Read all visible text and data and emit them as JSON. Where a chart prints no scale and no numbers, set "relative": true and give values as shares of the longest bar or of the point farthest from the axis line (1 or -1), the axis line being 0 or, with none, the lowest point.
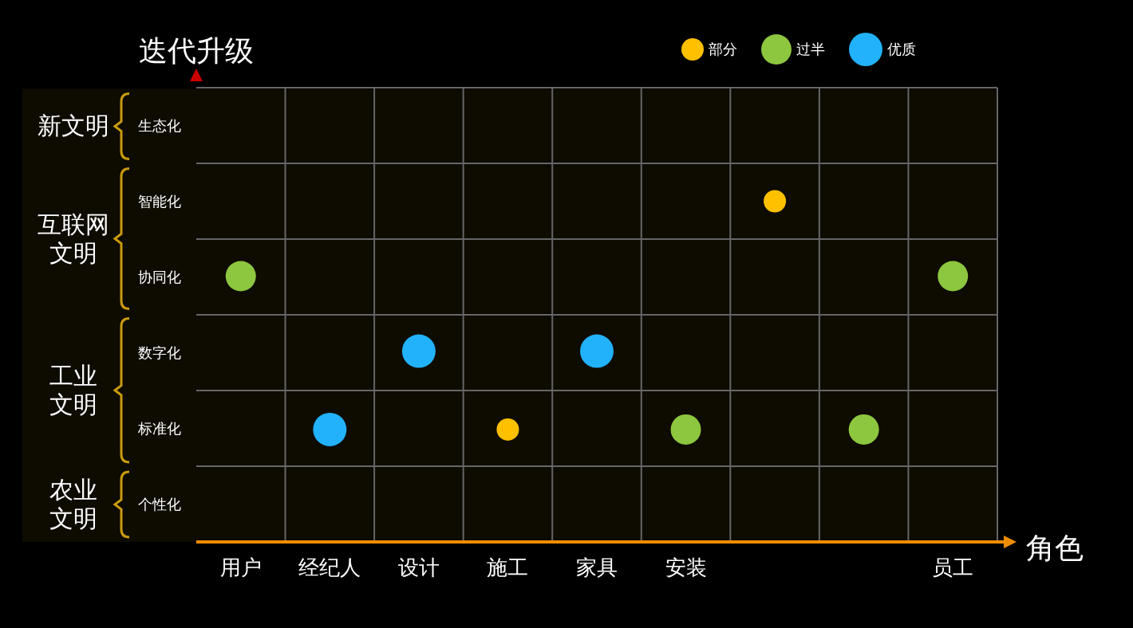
{
  "chart_data": {
    "type": "scatter",
    "xlabel": "角色",
    "ylabel": "迭代升级",
    "relative": true,
    "categories": [
      "用户",
      "经纪人",
      "设计",
      "施工",
      "家具",
      "安装",
      null,
      null,
      "员工"
    ],
    "y_categories": [
      "生态化",
      "智能化",
      "协同化",
      "数字化",
      "标准化",
      "个性化"
    ],
    "series": [
      {
        "name": "部分",
        "color": "#ffc000",
        "values": [
          null,
          null,
          null,
          0.33,
          null,
          null,
          1,
          null,
          null
        ]
      },
      {
        "name": "过半",
        "color": "#8dc63f",
        "values": [
          0.78,
          null,
          null,
          null,
          null,
          0.33,
          null,
          0.33,
          0.78
        ]
      },
      {
        "name": "优质",
        "color": "#22b2fb",
        "values": [
          null,
          0.33,
          0.56,
          null,
          0.56,
          null,
          null,
          null,
          null
        ]
      }
    ],
    "bands": [
      {
        "axis": "y",
        "from": 0,
        "to": 0.22,
        "label": "农业文明",
        "color": "#c89a10"
      },
      {
        "axis": "y",
        "from": 0.22,
        "to": 0.67,
        "label": "工业文明",
        "color": "#c89a10"
      },
      {
        "axis": "y",
        "from": 0.67,
        "to": 1.11,
        "label": "互联网文明",
        "color": "#c89a10"
      },
      {
        "axis": "y",
        "from": 1.11,
        "to": 1.33,
        "label": "新文明",
        "color": "#c89a10"
      }
    ],
    "grid": true,
    "legend": "top",
    "marker": "circle"
  }
}
